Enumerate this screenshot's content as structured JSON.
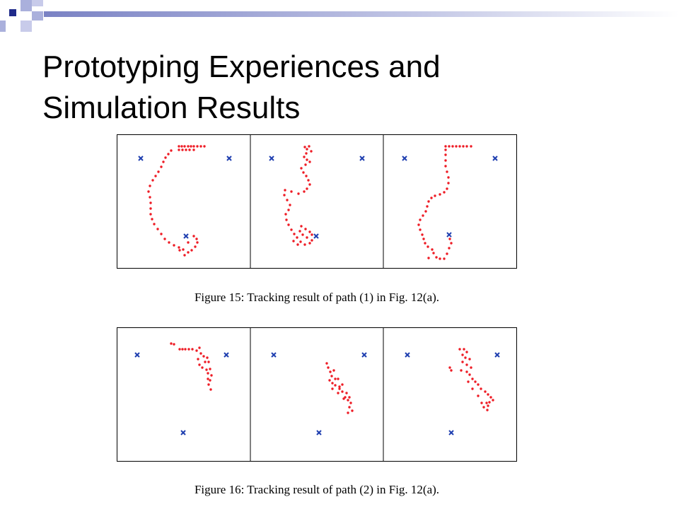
{
  "slide": {
    "title_line1": "Prototyping Experiences and",
    "title_line2": "Simulation Results"
  },
  "colors": {
    "deco_navy": "#1f2a8a",
    "deco_light": "#aab0dc",
    "track_red": "#ee1c25",
    "beacon_blue": "#1f3fb0"
  },
  "figures": [
    {
      "caption": "Figure 15: Tracking result of path (1) in Fig. 12(a).",
      "panels": [
        {
          "beacons": [
            [
              33,
              33
            ],
            [
              158,
              33
            ],
            [
              97,
              143
            ]
          ],
          "points": [
            [
              87,
              16
            ],
            [
              91,
              16
            ],
            [
              95,
              16
            ],
            [
              100,
              16
            ],
            [
              104,
              16
            ],
            [
              108,
              16
            ],
            [
              113,
              16
            ],
            [
              118,
              16
            ],
            [
              123,
              16
            ],
            [
              87,
              21
            ],
            [
              92,
              21
            ],
            [
              97,
              21
            ],
            [
              102,
              21
            ],
            [
              108,
              21
            ],
            [
              76,
              22
            ],
            [
              72,
              27
            ],
            [
              68,
              32
            ],
            [
              65,
              38
            ],
            [
              62,
              45
            ],
            [
              58,
              52
            ],
            [
              54,
              58
            ],
            [
              50,
              64
            ],
            [
              46,
              72
            ],
            [
              44,
              80
            ],
            [
              46,
              88
            ],
            [
              47,
              96
            ],
            [
              47,
              104
            ],
            [
              47,
              112
            ],
            [
              49,
              119
            ],
            [
              52,
              126
            ],
            [
              57,
              133
            ],
            [
              62,
              140
            ],
            [
              67,
              147
            ],
            [
              73,
              152
            ],
            [
              80,
              156
            ],
            [
              87,
              159
            ],
            [
              93,
              162
            ],
            [
              100,
              166
            ],
            [
              105,
              163
            ],
            [
              110,
              158
            ],
            [
              113,
              152
            ],
            [
              112,
              147
            ],
            [
              108,
              143
            ],
            [
              88,
              163
            ],
            [
              95,
              170
            ],
            [
              100,
              152
            ]
          ]
        },
        {
          "beacons": [
            [
              30,
              33
            ],
            [
              158,
              33
            ],
            [
              93,
              143
            ]
          ],
          "points": [
            [
              77,
              17
            ],
            [
              80,
              20
            ],
            [
              83,
              16
            ],
            [
              86,
              23
            ],
            [
              79,
              26
            ],
            [
              76,
              31
            ],
            [
              80,
              35
            ],
            [
              84,
              38
            ],
            [
              78,
              42
            ],
            [
              72,
              47
            ],
            [
              75,
              53
            ],
            [
              79,
              58
            ],
            [
              82,
              64
            ],
            [
              84,
              70
            ],
            [
              80,
              76
            ],
            [
              76,
              80
            ],
            [
              68,
              83
            ],
            [
              58,
              80
            ],
            [
              49,
              78
            ],
            [
              48,
              85
            ],
            [
              52,
              92
            ],
            [
              56,
              99
            ],
            [
              54,
              106
            ],
            [
              50,
              112
            ],
            [
              51,
              120
            ],
            [
              54,
              127
            ],
            [
              58,
              134
            ],
            [
              62,
              140
            ],
            [
              66,
              145
            ],
            [
              71,
              151
            ],
            [
              77,
              155
            ],
            [
              84,
              153
            ],
            [
              87,
              149
            ],
            [
              80,
              145
            ],
            [
              74,
              141
            ],
            [
              70,
              136
            ],
            [
              72,
              129
            ],
            [
              78,
              133
            ],
            [
              84,
              137
            ],
            [
              87,
              141
            ],
            [
              61,
              150
            ],
            [
              67,
              155
            ]
          ]
        },
        {
          "beacons": [
            [
              30,
              33
            ],
            [
              158,
              33
            ],
            [
              93,
              141
            ]
          ],
          "points": [
            [
              88,
              16
            ],
            [
              93,
              16
            ],
            [
              98,
              16
            ],
            [
              103,
              16
            ],
            [
              108,
              16
            ],
            [
              113,
              16
            ],
            [
              118,
              16
            ],
            [
              124,
              16
            ],
            [
              88,
              21
            ],
            [
              88,
              28
            ],
            [
              88,
              36
            ],
            [
              88,
              44
            ],
            [
              90,
              52
            ],
            [
              92,
              60
            ],
            [
              92,
              68
            ],
            [
              90,
              76
            ],
            [
              86,
              81
            ],
            [
              80,
              84
            ],
            [
              73,
              86
            ],
            [
              68,
              89
            ],
            [
              64,
              94
            ],
            [
              62,
              101
            ],
            [
              60,
              108
            ],
            [
              56,
              114
            ],
            [
              52,
              120
            ],
            [
              50,
              127
            ],
            [
              52,
              134
            ],
            [
              55,
              141
            ],
            [
              57,
              147
            ],
            [
              59,
              153
            ],
            [
              63,
              158
            ],
            [
              69,
              162
            ],
            [
              75,
              173
            ],
            [
              80,
              175
            ],
            [
              86,
              175
            ],
            [
              90,
              168
            ],
            [
              93,
              160
            ],
            [
              96,
              153
            ],
            [
              94,
              147
            ],
            [
              71,
              167
            ],
            [
              64,
              174
            ]
          ]
        }
      ]
    },
    {
      "caption": "Figure 16: Tracking result of path (2) in Fig. 12(a).",
      "panels": [
        {
          "beacons": [
            [
              28,
              38
            ],
            [
              154,
              38
            ],
            [
              93,
              148
            ]
          ],
          "points": [
            [
              76,
              22
            ],
            [
              80,
              23
            ],
            [
              88,
              30
            ],
            [
              92,
              30
            ],
            [
              96,
              30
            ],
            [
              101,
              30
            ],
            [
              106,
              30
            ],
            [
              112,
              32
            ],
            [
              116,
              28
            ],
            [
              118,
              36
            ],
            [
              122,
              40
            ],
            [
              114,
              44
            ],
            [
              116,
              52
            ],
            [
              120,
              56
            ],
            [
              126,
              59
            ],
            [
              128,
              64
            ],
            [
              133,
              67
            ],
            [
              131,
              74
            ],
            [
              129,
              80
            ],
            [
              132,
              87
            ],
            [
              129,
              48
            ],
            [
              127,
              42
            ],
            [
              124,
              48
            ],
            [
              131,
              58
            ],
            [
              128,
              72
            ]
          ]
        },
        {
          "beacons": [
            [
              33,
              38
            ],
            [
              161,
              38
            ],
            [
              97,
              148
            ]
          ],
          "points": [
            [
              108,
              50
            ],
            [
              110,
              56
            ],
            [
              113,
              62
            ],
            [
              115,
              68
            ],
            [
              112,
              74
            ],
            [
              116,
              78
            ],
            [
              120,
              81
            ],
            [
              126,
              86
            ],
            [
              130,
              90
            ],
            [
              136,
              92
            ],
            [
              134,
              98
            ],
            [
              138,
              102
            ],
            [
              142,
              106
            ],
            [
              140,
              112
            ],
            [
              144,
              117
            ],
            [
              138,
              120
            ],
            [
              126,
              83
            ],
            [
              120,
              72
            ],
            [
              118,
              60
            ],
            [
              124,
              72
            ],
            [
              130,
              80
            ],
            [
              116,
              86
            ],
            [
              124,
              92
            ],
            [
              132,
              100
            ],
            [
              140,
              98
            ]
          ]
        },
        {
          "beacons": [
            [
              34,
              38
            ],
            [
              161,
              38
            ],
            [
              96,
              148
            ]
          ],
          "points": [
            [
              108,
              30
            ],
            [
              114,
              30
            ],
            [
              118,
              34
            ],
            [
              112,
              38
            ],
            [
              116,
              42
            ],
            [
              122,
              44
            ],
            [
              112,
              48
            ],
            [
              118,
              52
            ],
            [
              124,
              56
            ],
            [
              110,
              60
            ],
            [
              118,
              62
            ],
            [
              94,
              56
            ],
            [
              96,
              60
            ],
            [
              122,
              66
            ],
            [
              126,
              72
            ],
            [
              130,
              76
            ],
            [
              134,
              80
            ],
            [
              138,
              86
            ],
            [
              144,
              90
            ],
            [
              148,
              94
            ],
            [
              152,
              98
            ],
            [
              155,
              102
            ],
            [
              150,
              105
            ],
            [
              146,
              106
            ],
            [
              148,
              110
            ],
            [
              142,
              112
            ],
            [
              147,
              116
            ],
            [
              139,
              106
            ],
            [
              134,
              96
            ],
            [
              126,
              86
            ],
            [
              120,
              76
            ]
          ]
        }
      ]
    }
  ]
}
